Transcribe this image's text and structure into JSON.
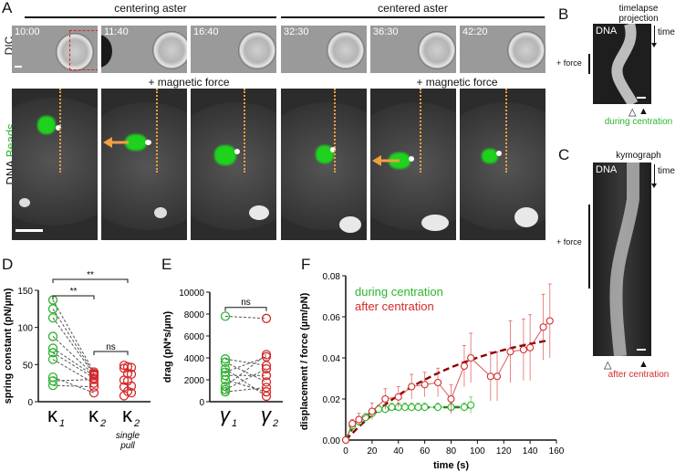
{
  "panels": {
    "A": "A",
    "B": "B",
    "C": "C",
    "D": "D",
    "E": "E",
    "F": "F"
  },
  "panelA": {
    "header_left": "centering aster",
    "header_right": "centered aster",
    "row1_label": "DIC",
    "row2_label_dna": "DNA",
    "row2_label_beads": "Beads",
    "force_left": "+ magnetic force",
    "force_right": "+ magnetic force",
    "timestamps": [
      "10:00",
      "11:40",
      "16:40",
      "32:30",
      "36:30",
      "42:20"
    ]
  },
  "panelB": {
    "title_line1": "timelapse",
    "title_line2": "projection",
    "dna": "DNA",
    "time": "time",
    "force": "+ force",
    "caption": "during centration",
    "open_arrow": "△",
    "filled_arrow": "▲"
  },
  "panelC": {
    "title": "kymograph",
    "dna": "DNA",
    "time": "time",
    "force": "+ force",
    "caption": "after centration",
    "open_arrow": "△",
    "filled_arrow": "▲"
  },
  "colors": {
    "green": "#2bb52b",
    "red": "#d42a2a",
    "darkred": "#8b0000",
    "darkgreen": "#0b6b0b",
    "orange": "#f0a040"
  },
  "chart_data": [
    {
      "id": "D",
      "type": "scatter",
      "ylabel": "spring constant (pN/µm)",
      "ylim": [
        0,
        150
      ],
      "yticks": [
        0,
        50,
        100,
        150
      ],
      "categories": [
        "κ1",
        "κ2",
        "κ2 single pull"
      ],
      "cat_main": [
        "κ",
        "κ",
        "κ"
      ],
      "cat_sub": [
        "1",
        "2",
        "2"
      ],
      "cat_note": [
        "",
        "",
        "single\npull"
      ],
      "cat_note_l1": "single",
      "cat_note_l2": "pull",
      "kappa1": [
        137,
        125,
        113,
        88,
        72,
        66,
        57,
        33,
        28,
        22
      ],
      "kappa2": [
        40,
        38,
        37,
        36,
        35,
        32,
        25,
        12,
        30,
        20
      ],
      "kappa2_single": [
        49,
        47,
        46,
        45,
        38,
        37,
        29,
        28,
        21,
        20,
        14,
        12,
        8
      ],
      "sig1": "**",
      "sig2": "**",
      "sig3": "ns"
    },
    {
      "id": "E",
      "type": "scatter",
      "ylabel": "drag (pN*s/µm)",
      "ylim": [
        0,
        10000
      ],
      "yticks": [
        0,
        2000,
        4000,
        6000,
        8000,
        10000
      ],
      "cat_main": [
        "γ",
        "γ"
      ],
      "cat_sub": [
        "1",
        "2"
      ],
      "gamma1": [
        7800,
        3900,
        3600,
        3000,
        2700,
        2400,
        2000,
        1400,
        1100,
        900
      ],
      "gamma2": [
        7600,
        4300,
        4100,
        3300,
        3000,
        2400,
        1800,
        1300,
        900,
        500
      ],
      "sig": "ns"
    },
    {
      "id": "F",
      "type": "line",
      "xlabel": "time (s)",
      "ylabel": "displacement / force (µm/pN)",
      "xlim": [
        0,
        160
      ],
      "ylim": [
        0,
        0.08
      ],
      "xticks": [
        0,
        20,
        40,
        60,
        80,
        100,
        120,
        140,
        160
      ],
      "yticks": [
        "0.00",
        "0.02",
        "0.04",
        "0.06",
        "0.08"
      ],
      "series": [
        {
          "name": "during centration",
          "x": [
            0,
            5,
            10,
            15,
            20,
            25,
            30,
            35,
            40,
            45,
            50,
            55,
            60,
            70,
            80,
            90,
            95
          ],
          "y": [
            0,
            0.007,
            0.009,
            0.011,
            0.013,
            0.015,
            0.015,
            0.016,
            0.016,
            0.016,
            0.016,
            0.016,
            0.016,
            0.016,
            0.016,
            0.016,
            0.017
          ],
          "err": [
            0,
            0.002,
            0.002,
            0.002,
            0.002,
            0.002,
            0.002,
            0.002,
            0.002,
            0.002,
            0.002,
            0.002,
            0.002,
            0.002,
            0.002,
            0.002,
            0.004
          ]
        },
        {
          "name": "after centration",
          "x": [
            0,
            5,
            10,
            20,
            30,
            40,
            50,
            60,
            70,
            80,
            90,
            95,
            110,
            115,
            125,
            135,
            140,
            150,
            155
          ],
          "y": [
            0,
            0.008,
            0.01,
            0.014,
            0.02,
            0.021,
            0.026,
            0.027,
            0.028,
            0.02,
            0.036,
            0.04,
            0.031,
            0.031,
            0.043,
            0.044,
            0.045,
            0.055,
            0.058
          ],
          "err": [
            0,
            0.002,
            0.003,
            0.004,
            0.005,
            0.005,
            0.006,
            0.006,
            0.007,
            0.007,
            0.01,
            0.012,
            0.012,
            0.012,
            0.015,
            0.015,
            0.016,
            0.016,
            0.018
          ]
        }
      ]
    }
  ]
}
